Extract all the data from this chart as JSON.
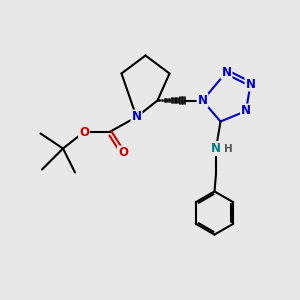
{
  "bg_color": "#e8e8e8",
  "bond_color": "#000000",
  "N_color": "#0000cc",
  "O_color": "#cc0000",
  "NH_color": "#008080",
  "line_width": 1.5,
  "font_size_atom": 8.5,
  "fig_size": [
    3.0,
    3.0
  ],
  "dpi": 100,
  "xlim": [
    0,
    10
  ],
  "ylim": [
    0,
    10
  ]
}
